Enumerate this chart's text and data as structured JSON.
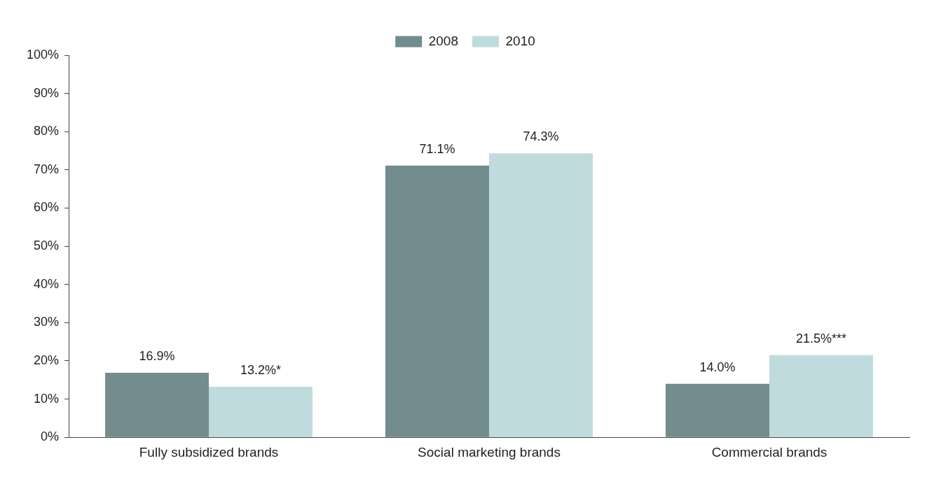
{
  "chart_data": {
    "type": "bar",
    "categories": [
      "Fully subsidized brands",
      "Social marketing brands",
      "Commercial brands"
    ],
    "series": [
      {
        "name": "2008",
        "color": "#738c8e",
        "values": [
          16.9,
          71.1,
          14.0
        ],
        "value_labels": [
          "16.9%",
          "71.1%",
          "14.0%"
        ]
      },
      {
        "name": "2010",
        "color": "#c0dbdd",
        "values": [
          13.2,
          74.3,
          21.5
        ],
        "value_labels": [
          "13.2%*",
          "74.3%",
          "21.5%***"
        ]
      }
    ],
    "ylim": [
      0,
      100
    ],
    "yticks": [
      {
        "value": 0,
        "label": "0%"
      },
      {
        "value": 10,
        "label": "10%"
      },
      {
        "value": 20,
        "label": "20%"
      },
      {
        "value": 30,
        "label": "30%"
      },
      {
        "value": 40,
        "label": "40%"
      },
      {
        "value": 50,
        "label": "50%"
      },
      {
        "value": 60,
        "label": "60%"
      },
      {
        "value": 70,
        "label": "70%"
      },
      {
        "value": 80,
        "label": "80%"
      },
      {
        "value": 90,
        "label": "90%"
      },
      {
        "value": 100,
        "label": "100%"
      }
    ],
    "grid": false,
    "legend": "top"
  }
}
